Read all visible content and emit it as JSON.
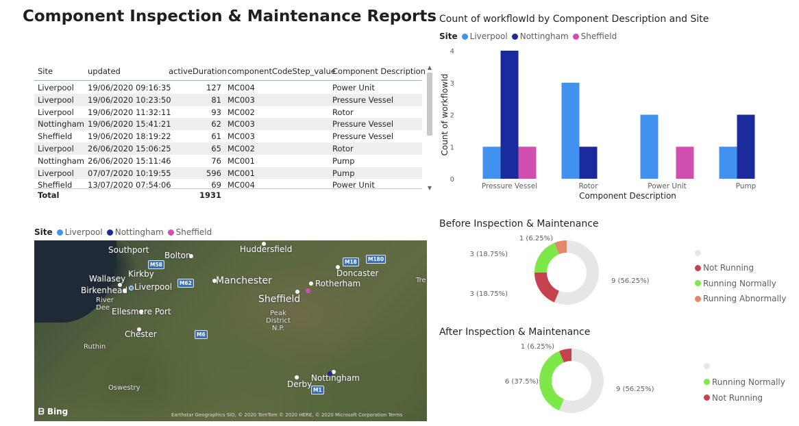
{
  "page_title": "Component Inspection & Maintenance Reports",
  "colors": {
    "liverpool": "#4192f0",
    "nottingham": "#1b2a9c",
    "sheffield": "#d14faf",
    "not_running": "#c4434e",
    "running_normally": "#7ee84a",
    "running_abnormally": "#e2876a",
    "blank": "#e6e6e6"
  },
  "table": {
    "headers": [
      "Site",
      "updated",
      "activeDuration",
      "componentCodeStep_value",
      "Component Description"
    ],
    "rows": [
      [
        "Liverpool",
        "19/06/2020 09:16:35",
        "127",
        "MC004",
        "Power Unit"
      ],
      [
        "Liverpool",
        "19/06/2020 10:23:50",
        "81",
        "MC003",
        "Pressure Vessel"
      ],
      [
        "Liverpool",
        "19/06/2020 11:32:11",
        "93",
        "MC002",
        "Rotor"
      ],
      [
        "Nottingham",
        "19/06/2020 15:41:21",
        "62",
        "MC003",
        "Pressure Vessel"
      ],
      [
        "Sheffield",
        "19/06/2020 18:19:22",
        "61",
        "MC003",
        "Pressure Vessel"
      ],
      [
        "Liverpool",
        "26/06/2020 15:06:25",
        "65",
        "MC002",
        "Rotor"
      ],
      [
        "Nottingham",
        "26/06/2020 15:11:46",
        "76",
        "MC001",
        "Pump"
      ],
      [
        "Liverpool",
        "07/07/2020 10:19:55",
        "596",
        "MC001",
        "Pump"
      ],
      [
        "Sheffield",
        "13/07/2020 07:54:06",
        "69",
        "MC004",
        "Power Unit"
      ]
    ],
    "total_label": "Total",
    "total_value": "1931"
  },
  "site_legend": {
    "title": "Site",
    "items": [
      "Liverpool",
      "Nottingham",
      "Sheffield"
    ]
  },
  "bar_chart": {
    "title": "Count of workflowId by Component Description and Site",
    "chart_data": {
      "type": "bar",
      "categories": [
        "Pressure Vessel",
        "Rotor",
        "Power Unit",
        "Pump"
      ],
      "series": [
        {
          "name": "Liverpool",
          "values": [
            1,
            3,
            2,
            1
          ]
        },
        {
          "name": "Nottingham",
          "values": [
            4,
            1,
            0,
            2
          ]
        },
        {
          "name": "Sheffield",
          "values": [
            1,
            0,
            1,
            0
          ]
        }
      ],
      "xlabel": "Component Description",
      "ylabel": "Count of workflowId",
      "ylim": [
        0,
        4
      ],
      "yticks": [
        "0",
        "1",
        "2",
        "3",
        "4"
      ]
    }
  },
  "map": {
    "legend_title": "Site",
    "labels": [
      "Southport",
      "Bolton",
      "Huddersfield",
      "Kirkby",
      "Wallasey",
      "Liverpool",
      "Birkenhead",
      "Manchester",
      "Doncaster",
      "Rotherham",
      "Sheffield",
      "River Dee",
      "Ellesmere Port",
      "Peak District N.P.",
      "Chester",
      "Ruthin",
      "Derby",
      "Nottingham",
      "Oswestry",
      "Tre"
    ],
    "roads": [
      "M58",
      "M62",
      "M18",
      "M180",
      "M6",
      "M1"
    ],
    "bing": "Bing",
    "attribution": "Earthstar Geographics SIO, © 2020 TomTom © 2020 HERE, © 2020 Microsoft Corporation  Terms"
  },
  "before_chart": {
    "title": "Before Inspection & Maintenance",
    "chart_data": {
      "type": "pie",
      "slices": [
        {
          "label": "(Blank)",
          "value": 9,
          "data_label": "9 (56.25%)"
        },
        {
          "label": "Not Running",
          "value": 3,
          "data_label": "3 (18.75%)"
        },
        {
          "label": "Running Normally",
          "value": 3,
          "data_label": "3 (18.75%)"
        },
        {
          "label": "Running Abnormally",
          "value": 1,
          "data_label": "1 (6.25%)"
        }
      ]
    },
    "legend": [
      "",
      "Not Running",
      "Running Normally",
      "Running Abnormally"
    ]
  },
  "after_chart": {
    "title": "After Inspection & Maintenance",
    "chart_data": {
      "type": "pie",
      "slices": [
        {
          "label": "(Blank)",
          "value": 9,
          "data_label": "9 (56.25%)"
        },
        {
          "label": "Running Normally",
          "value": 6,
          "data_label": "6 (37.5%)"
        },
        {
          "label": "Not Running",
          "value": 1,
          "data_label": "1 (6.25%)"
        }
      ]
    },
    "legend": [
      "",
      "Running Normally",
      "Not Running"
    ]
  }
}
